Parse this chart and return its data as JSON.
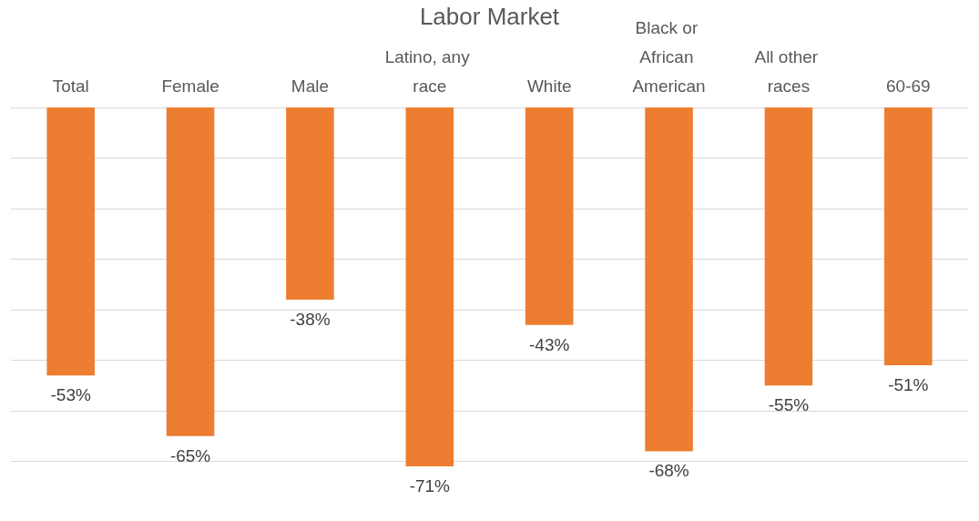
{
  "chart_data": {
    "type": "bar",
    "title": "Labor Market",
    "categories": [
      "Total",
      "Female",
      "Male",
      "Latino, any race",
      "White",
      "Black or African American",
      "All other races",
      "60-69"
    ],
    "values": [
      -53,
      -65,
      -38,
      -71,
      -43,
      -68,
      -55,
      -51
    ],
    "value_labels": [
      "-53%",
      "-65%",
      "-38%",
      "-71%",
      "-43%",
      "-68%",
      "-55%",
      "-51%"
    ],
    "color": "#ed7d31",
    "yticks": [
      {
        "value": -70,
        "label": null
      },
      {
        "value": -60,
        "label": null
      },
      {
        "value": -50,
        "label": null
      },
      {
        "value": -40,
        "label": null
      },
      {
        "value": -30,
        "label": null
      },
      {
        "value": -20,
        "label": null
      },
      {
        "value": -10,
        "label": null
      },
      {
        "value": 0,
        "label": null
      }
    ],
    "tick_labels": "x",
    "grid": "y"
  }
}
